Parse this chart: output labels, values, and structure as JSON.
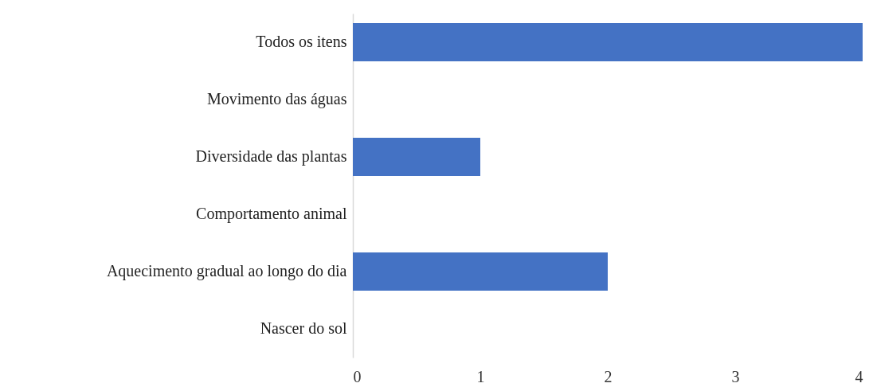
{
  "chart_data": {
    "type": "bar",
    "orientation": "horizontal",
    "categories": [
      "Todos os itens",
      "Movimento das águas",
      "Diversidade das plantas",
      "Comportamento animal",
      "Aquecimento gradual ao longo do dia",
      "Nascer do sol"
    ],
    "values": [
      4,
      0,
      1,
      0,
      2,
      0
    ],
    "color": "#4472c4",
    "xlim": [
      0,
      4
    ],
    "xticks": [
      0,
      1,
      2,
      3,
      4
    ],
    "grid": false
  }
}
